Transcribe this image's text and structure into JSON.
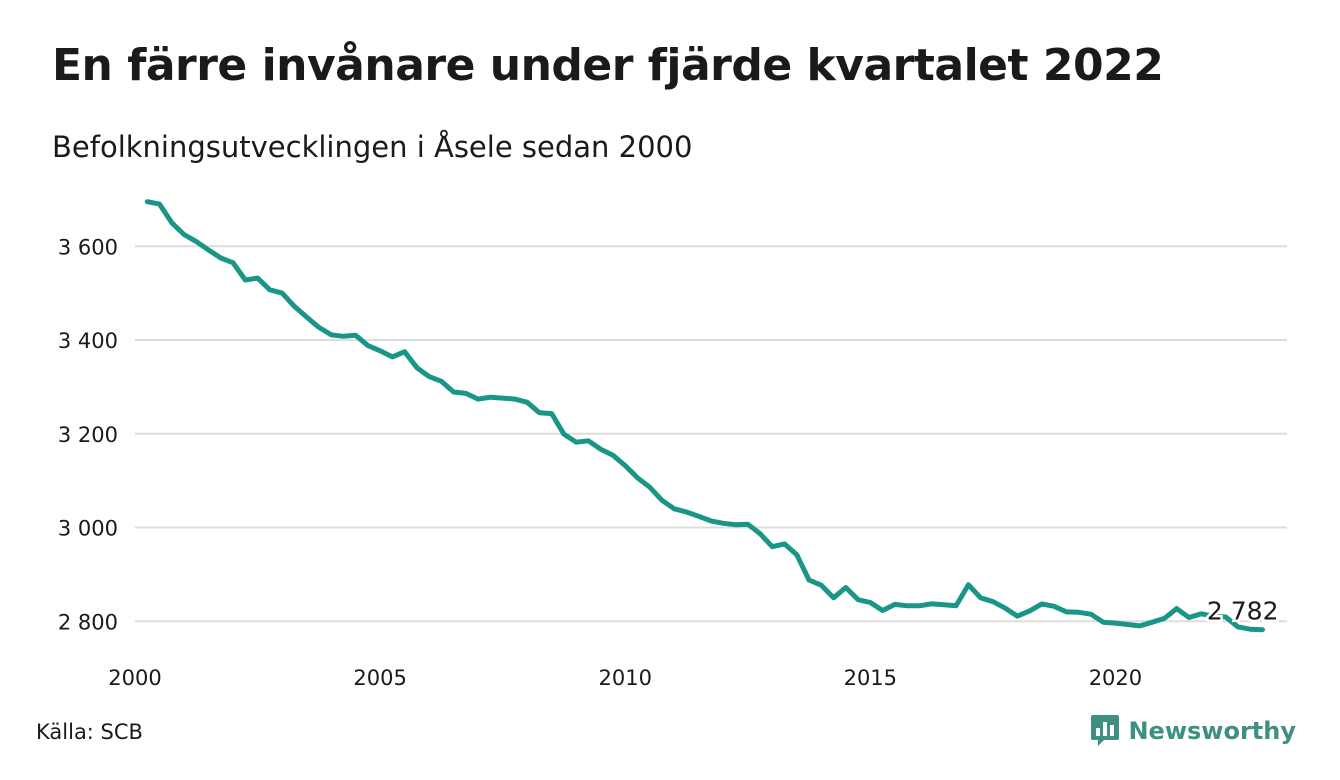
{
  "header": {
    "title": "En färre invånare under fjärde kvartalet 2022",
    "subtitle": "Befolkningsutvecklingen i Åsele sedan 2000"
  },
  "footer": {
    "source": "Källa: SCB",
    "brand": "Newsworthy",
    "brand_icon": "bar-chart-speech-bubble-icon"
  },
  "colors": {
    "line": "#1a9688",
    "grid": "#dddddd",
    "brand": "#3f8f82"
  },
  "chart_data": {
    "type": "line",
    "title": "En färre invånare under fjärde kvartalet 2022",
    "subtitle": "Befolkningsutvecklingen i Åsele sedan 2000",
    "xlabel": "",
    "ylabel": "",
    "xlim": [
      2000,
      2023.5
    ],
    "ylim": [
      2760,
      3720
    ],
    "xticks": [
      2000,
      2005,
      2010,
      2015,
      2020
    ],
    "xtick_labels": [
      "2000",
      "2005",
      "2010",
      "2015",
      "2020"
    ],
    "yticks": [
      2800,
      3000,
      3200,
      3400,
      3600
    ],
    "ytick_labels": [
      "2 800",
      "3 000",
      "3 200",
      "3 400",
      "3 600"
    ],
    "grid": "horizontal",
    "end_label": "2 782",
    "series": [
      {
        "x": [
          2000.25,
          2000.5,
          2000.75,
          2001.0,
          2001.25,
          2001.5,
          2001.75,
          2002.0,
          2002.25,
          2002.5,
          2002.75,
          2003.0,
          2003.25,
          2003.5,
          2003.75,
          2004.0,
          2004.25,
          2004.5,
          2004.75,
          2005.0,
          2005.25,
          2005.5,
          2005.75,
          2006.0,
          2006.25,
          2006.5,
          2006.75,
          2007.0,
          2007.25,
          2007.5,
          2007.75,
          2008.0,
          2008.25,
          2008.5,
          2008.75,
          2009.0,
          2009.25,
          2009.5,
          2009.75,
          2010.0,
          2010.25,
          2010.5,
          2010.75,
          2011.0,
          2011.25,
          2011.5,
          2011.75,
          2012.0,
          2012.25,
          2012.5,
          2012.75,
          2013.0,
          2013.25,
          2013.5,
          2013.75,
          2014.0,
          2014.25,
          2014.5,
          2014.75,
          2015.0,
          2015.25,
          2015.5,
          2015.75,
          2016.0,
          2016.25,
          2016.5,
          2016.75,
          2017.0,
          2017.25,
          2017.5,
          2017.75,
          2018.0,
          2018.25,
          2018.5,
          2018.75,
          2019.0,
          2019.25,
          2019.5,
          2019.75,
          2020.0,
          2020.25,
          2020.5,
          2020.75,
          2021.0,
          2021.25,
          2021.5,
          2021.75,
          2022.0,
          2022.25,
          2022.5,
          2022.75,
          2023.0
        ],
        "values": [
          3695,
          3690,
          3650,
          3625,
          3610,
          3592,
          3575,
          3565,
          3528,
          3532,
          3507,
          3500,
          3472,
          3449,
          3427,
          3411,
          3408,
          3410,
          3388,
          3377,
          3364,
          3375,
          3341,
          3322,
          3312,
          3289,
          3286,
          3274,
          3278,
          3276,
          3274,
          3267,
          3245,
          3243,
          3199,
          3182,
          3185,
          3167,
          3154,
          3132,
          3106,
          3086,
          3058,
          3040,
          3033,
          3024,
          3014,
          3009,
          3006,
          3007,
          2987,
          2959,
          2965,
          2942,
          2888,
          2877,
          2850,
          2872,
          2846,
          2840,
          2823,
          2836,
          2833,
          2833,
          2837,
          2835,
          2833,
          2878,
          2850,
          2842,
          2828,
          2811,
          2822,
          2837,
          2832,
          2820,
          2819,
          2815,
          2798,
          2796,
          2793,
          2790,
          2798,
          2806,
          2827,
          2808,
          2816,
          2811,
          2809,
          2788,
          2783,
          2782
        ]
      }
    ]
  }
}
